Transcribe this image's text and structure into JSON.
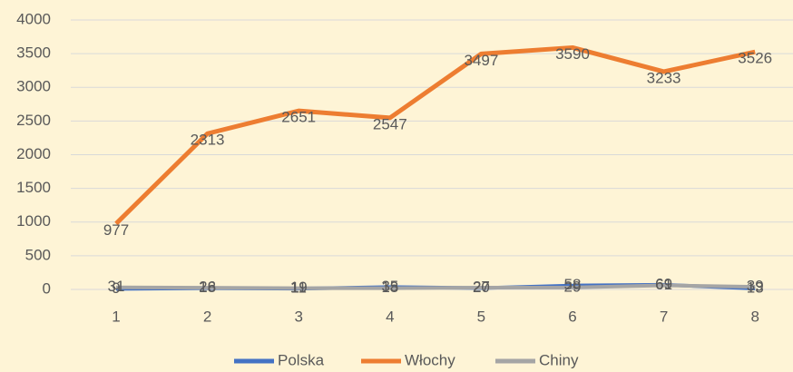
{
  "chart_data": {
    "type": "line",
    "categories": [
      "1",
      "2",
      "3",
      "4",
      "5",
      "6",
      "7",
      "8"
    ],
    "series": [
      {
        "name": "Polska",
        "color": "#4472c4",
        "values": [
          9,
          18,
          11,
          35,
          20,
          58,
          69,
          13
        ]
      },
      {
        "name": "Włochy",
        "color": "#ed7d31",
        "values": [
          977,
          2313,
          2651,
          2547,
          3497,
          3590,
          3233,
          3526
        ]
      },
      {
        "name": "Chiny",
        "color": "#a5a5a5",
        "values": [
          31,
          26,
          19,
          18,
          27,
          29,
          61,
          39
        ]
      }
    ],
    "ylim": [
      0,
      4000
    ],
    "yticks": [
      0,
      500,
      1000,
      1500,
      2000,
      2500,
      3000,
      3500,
      4000
    ],
    "grid": true,
    "legend": "bottom"
  }
}
